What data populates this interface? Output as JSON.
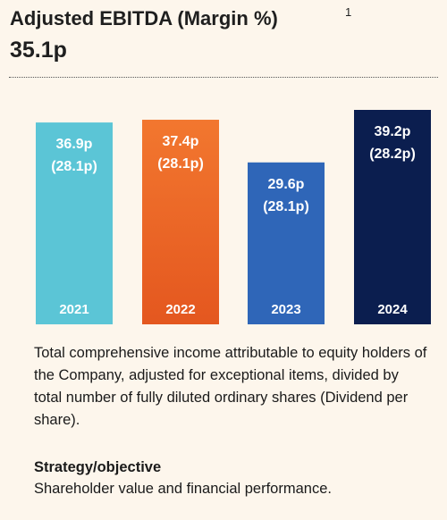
{
  "header": {
    "title": "Adjusted EBITDA (Margin %)",
    "footnote": "1",
    "headline_value": "35.1p"
  },
  "chart_data": {
    "type": "bar",
    "categories": [
      "2021",
      "2022",
      "2023",
      "2024"
    ],
    "values": [
      36.9,
      37.4,
      29.6,
      39.2
    ],
    "value_labels": [
      "36.9p",
      "37.4p",
      "29.6p",
      "39.2p"
    ],
    "secondary_labels": [
      "(28.1p)",
      "(28.1p)",
      "(28.1p)",
      "(28.2p)"
    ],
    "colors": [
      "#5bc5d6",
      "#ef6a2c",
      "#2f66b8",
      "#0b1e4f"
    ],
    "ylim": [
      0,
      39.2
    ],
    "grid": false,
    "legend": "none"
  },
  "description": "Total comprehensive income attributable to equity holders of the Company, adjusted for exceptional items, divided by total number of fully diluted ordinary shares (Dividend per share).",
  "strategy": {
    "heading": "Strategy/objective",
    "text": "Shareholder value and financial performance."
  }
}
